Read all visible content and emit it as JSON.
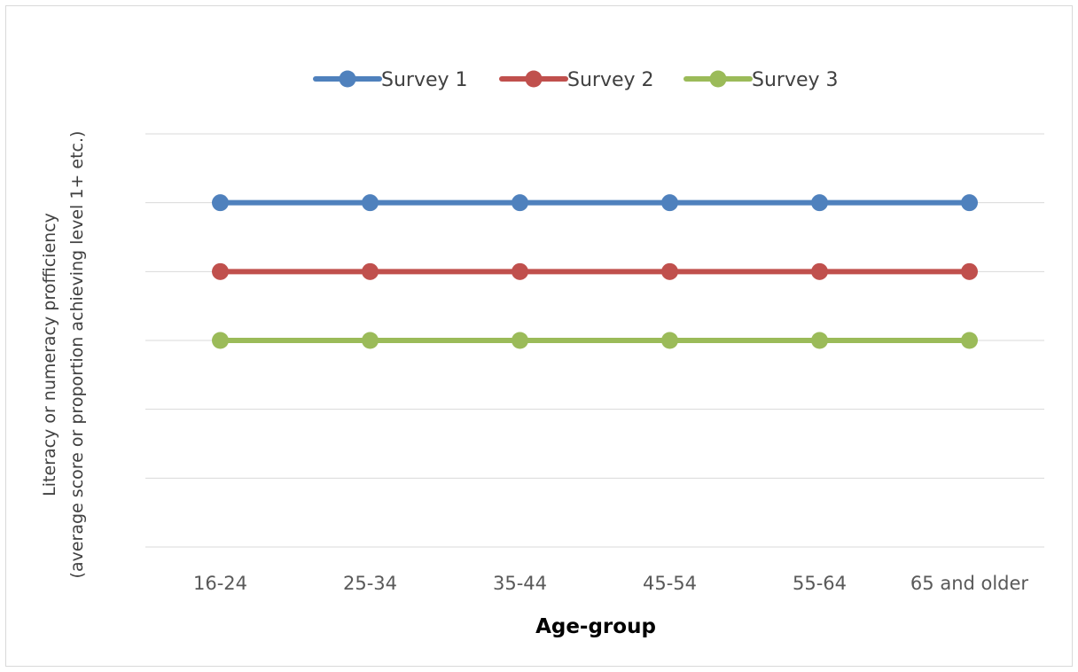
{
  "chart_data": {
    "type": "line",
    "title": "",
    "xlabel": "Age-group",
    "ylabel_lines": [
      "Literacy or numeracy profficiency",
      "(average score or proportion achieving level 1+ etc.)"
    ],
    "categories": [
      "16-24",
      "25-34",
      "35-44",
      "45-54",
      "55-64",
      "65 and older"
    ],
    "series": [
      {
        "name": "Survey 1",
        "color": "#4f81bd",
        "values": [
          5,
          5,
          5,
          5,
          5,
          5
        ]
      },
      {
        "name": "Survey 2",
        "color": "#c0504d",
        "values": [
          4,
          4,
          4,
          4,
          4,
          4
        ]
      },
      {
        "name": "Survey 3",
        "color": "#9bbb59",
        "values": [
          3,
          3,
          3,
          3,
          3,
          3
        ]
      }
    ],
    "ylim": [
      0,
      6
    ],
    "y_gridlines": [
      0,
      1,
      2,
      3,
      4,
      5,
      6
    ],
    "y_tick_labels_shown": false,
    "grid": true,
    "legend_position": "top"
  }
}
